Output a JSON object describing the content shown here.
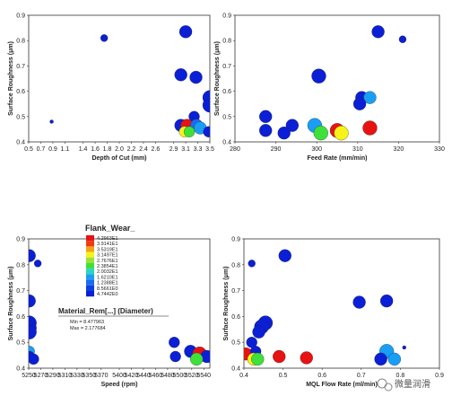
{
  "charts": [
    {
      "type": "scatter",
      "xlabel": "Depth of Cut (mm)",
      "ylabel": "Surface Roughness (μm)",
      "xlim": [
        0.5,
        3.5
      ],
      "ylim": [
        0.4,
        0.9
      ],
      "xticks": [
        "0.5",
        "0.7",
        "0.9",
        "1.1",
        "1.4",
        "1.6",
        "1.8",
        "2.0",
        "2.2",
        "2.4",
        "2.6",
        "2.9",
        "3.1",
        "3.3",
        "3.5"
      ],
      "yticks": [
        "0.4",
        "0.5",
        "0.6",
        "0.7",
        "0.8",
        "0.9"
      ],
      "points": [
        {
          "x": 0.88,
          "y": 0.48,
          "r": 2,
          "color": "#0b1fd6"
        },
        {
          "x": 1.75,
          "y": 0.81,
          "r": 4,
          "color": "#0b1fd6"
        },
        {
          "x": 3.1,
          "y": 0.835,
          "r": 7,
          "color": "#0b1fd6"
        },
        {
          "x": 3.02,
          "y": 0.665,
          "r": 7,
          "color": "#0b1fd6"
        },
        {
          "x": 3.27,
          "y": 0.655,
          "r": 7,
          "color": "#0b1fd6"
        },
        {
          "x": 3.5,
          "y": 0.575,
          "r": 8,
          "color": "#0b1fd6"
        },
        {
          "x": 3.5,
          "y": 0.545,
          "r": 8,
          "color": "#0b1fd6"
        },
        {
          "x": 3.24,
          "y": 0.5,
          "r": 6,
          "color": "#0b1fd6"
        },
        {
          "x": 3.02,
          "y": 0.465,
          "r": 7,
          "color": "#0b1fd6"
        },
        {
          "x": 3.12,
          "y": 0.465,
          "r": 7,
          "color": "#e81212"
        },
        {
          "x": 3.28,
          "y": 0.465,
          "r": 7,
          "color": "#1a6cf0"
        },
        {
          "x": 3.34,
          "y": 0.455,
          "r": 7,
          "color": "#1a9ef5"
        },
        {
          "x": 3.08,
          "y": 0.44,
          "r": 6,
          "color": "#f7f21a"
        },
        {
          "x": 3.16,
          "y": 0.44,
          "r": 6,
          "color": "#3fe03a"
        },
        {
          "x": 3.48,
          "y": 0.44,
          "r": 6,
          "color": "#0b1fd6"
        }
      ]
    },
    {
      "type": "scatter",
      "xlabel": "Feed Rate (mm/min)",
      "ylabel": "Surface Roughness (μm)",
      "xlim": [
        280,
        330
      ],
      "ylim": [
        0.4,
        0.9
      ],
      "xticks": [
        "280",
        "290",
        "300",
        "310",
        "320",
        "330"
      ],
      "yticks": [
        "0.4",
        "0.5",
        "0.6",
        "0.7",
        "0.8",
        "0.9"
      ],
      "points": [
        {
          "x": 315,
          "y": 0.835,
          "r": 7,
          "color": "#0b1fd6"
        },
        {
          "x": 321,
          "y": 0.805,
          "r": 4,
          "color": "#0b1fd6"
        },
        {
          "x": 300.5,
          "y": 0.66,
          "r": 8,
          "color": "#0b1fd6"
        },
        {
          "x": 311,
          "y": 0.575,
          "r": 7,
          "color": "#0b1fd6"
        },
        {
          "x": 313,
          "y": 0.575,
          "r": 7,
          "color": "#1a9ef5"
        },
        {
          "x": 310.5,
          "y": 0.55,
          "r": 7,
          "color": "#0b1fd6"
        },
        {
          "x": 287.5,
          "y": 0.5,
          "r": 7,
          "color": "#0b1fd6"
        },
        {
          "x": 294,
          "y": 0.465,
          "r": 7,
          "color": "#0b1fd6"
        },
        {
          "x": 299.5,
          "y": 0.465,
          "r": 8,
          "color": "#1a9ef5"
        },
        {
          "x": 305,
          "y": 0.445,
          "r": 8,
          "color": "#e81212"
        },
        {
          "x": 313,
          "y": 0.455,
          "r": 8,
          "color": "#e81212"
        },
        {
          "x": 287.5,
          "y": 0.445,
          "r": 7,
          "color": "#0b1fd6"
        },
        {
          "x": 292,
          "y": 0.435,
          "r": 7,
          "color": "#0b1fd6"
        },
        {
          "x": 301,
          "y": 0.435,
          "r": 8,
          "color": "#3fe03a"
        },
        {
          "x": 306,
          "y": 0.435,
          "r": 8,
          "color": "#f7f21a"
        }
      ]
    },
    {
      "type": "scatter",
      "xlabel": "Speed (rpm)",
      "ylabel": "Surface Roughness (μm)",
      "xlim": [
        5250,
        5550
      ],
      "ylim": [
        0.4,
        0.9
      ],
      "xticks": [
        "5250",
        "5270",
        "5290",
        "5310",
        "5330",
        "5350",
        "5370",
        "5400",
        "5420",
        "5440",
        "5460",
        "5480",
        "5500",
        "5520",
        "5540"
      ],
      "xtick_values": [
        5250,
        5270,
        5290,
        5310,
        5330,
        5350,
        5370,
        5400,
        5420,
        5440,
        5460,
        5480,
        5500,
        5520,
        5540
      ],
      "yticks": [
        "0.4",
        "0.5",
        "0.6",
        "0.7",
        "0.8",
        "0.9"
      ],
      "points": [
        {
          "x": 5251,
          "y": 0.835,
          "r": 7,
          "color": "#0b1fd6"
        },
        {
          "x": 5265,
          "y": 0.805,
          "r": 4,
          "color": "#0b1fd6"
        },
        {
          "x": 5251,
          "y": 0.66,
          "r": 7,
          "color": "#0b1fd6"
        },
        {
          "x": 5251,
          "y": 0.575,
          "r": 8,
          "color": "#0b1fd6"
        },
        {
          "x": 5251,
          "y": 0.555,
          "r": 8,
          "color": "#0b1fd6"
        },
        {
          "x": 5251,
          "y": 0.54,
          "r": 8,
          "color": "#0b1fd6"
        },
        {
          "x": 5251,
          "y": 0.465,
          "r": 6,
          "color": "#1a9ef5"
        },
        {
          "x": 5251,
          "y": 0.445,
          "r": 6,
          "color": "#0b1fd6"
        },
        {
          "x": 5258,
          "y": 0.435,
          "r": 6,
          "color": "#0b1fd6"
        },
        {
          "x": 5491,
          "y": 0.5,
          "r": 6,
          "color": "#0b1fd6"
        },
        {
          "x": 5493,
          "y": 0.445,
          "r": 6,
          "color": "#0b1fd6"
        },
        {
          "x": 5518,
          "y": 0.465,
          "r": 7,
          "color": "#0b1fd6"
        },
        {
          "x": 5533,
          "y": 0.455,
          "r": 8,
          "color": "#e81212"
        },
        {
          "x": 5545,
          "y": 0.445,
          "r": 7,
          "color": "#0b1fd6"
        },
        {
          "x": 5528,
          "y": 0.435,
          "r": 7,
          "color": "#3fe03a"
        }
      ]
    },
    {
      "type": "scatter",
      "xlabel": "MQL Flow Rate (ml/min)",
      "ylabel": "Surface Roughness (μm)",
      "xlim": [
        0.4,
        0.9
      ],
      "ylim": [
        0.4,
        0.9
      ],
      "xticks": [
        "0.4",
        "0.5",
        "0.6",
        "0.7",
        "0.8",
        "0.9"
      ],
      "yticks": [
        "0.4",
        "0.5",
        "0.6",
        "0.7",
        "0.8",
        "0.9"
      ],
      "points": [
        {
          "x": 0.42,
          "y": 0.805,
          "r": 4,
          "color": "#0b1fd6"
        },
        {
          "x": 0.505,
          "y": 0.835,
          "r": 7,
          "color": "#0b1fd6"
        },
        {
          "x": 0.455,
          "y": 0.575,
          "r": 8,
          "color": "#0b1fd6"
        },
        {
          "x": 0.445,
          "y": 0.56,
          "r": 8,
          "color": "#0b1fd6"
        },
        {
          "x": 0.438,
          "y": 0.54,
          "r": 7,
          "color": "#0b1fd6"
        },
        {
          "x": 0.695,
          "y": 0.655,
          "r": 7,
          "color": "#0b1fd6"
        },
        {
          "x": 0.765,
          "y": 0.66,
          "r": 7,
          "color": "#0b1fd6"
        },
        {
          "x": 0.42,
          "y": 0.5,
          "r": 6,
          "color": "#0b1fd6"
        },
        {
          "x": 0.765,
          "y": 0.465,
          "r": 8,
          "color": "#1a9ef5"
        },
        {
          "x": 0.81,
          "y": 0.48,
          "r": 2,
          "color": "#0b1fd6"
        },
        {
          "x": 0.405,
          "y": 0.455,
          "r": 7,
          "color": "#e81212"
        },
        {
          "x": 0.43,
          "y": 0.465,
          "r": 6,
          "color": "#0b1fd6"
        },
        {
          "x": 0.49,
          "y": 0.445,
          "r": 7,
          "color": "#e81212"
        },
        {
          "x": 0.56,
          "y": 0.44,
          "r": 7,
          "color": "#e81212"
        },
        {
          "x": 0.425,
          "y": 0.435,
          "r": 7,
          "color": "#f7f21a"
        },
        {
          "x": 0.435,
          "y": 0.435,
          "r": 7,
          "color": "#3fe03a"
        },
        {
          "x": 0.75,
          "y": 0.435,
          "r": 7,
          "color": "#0b1fd6"
        },
        {
          "x": 0.785,
          "y": 0.435,
          "r": 7,
          "color": "#1a9ef5"
        }
      ]
    }
  ],
  "legend": {
    "title": "Flank_Wear_",
    "entries": [
      {
        "label": "4.2963E1",
        "color": "#e81212"
      },
      {
        "label": "3.9141E1",
        "color": "#f03a12"
      },
      {
        "label": "3.5319E1",
        "color": "#f5a21a"
      },
      {
        "label": "3.1497E1",
        "color": "#f7f21a"
      },
      {
        "label": "2.7676E1",
        "color": "#9be23a"
      },
      {
        "label": "2.3854E1",
        "color": "#3fe03a"
      },
      {
        "label": "2.0032E1",
        "color": "#2ad6c2"
      },
      {
        "label": "1.6210E1",
        "color": "#1a9ef5"
      },
      {
        "label": "1.2388E1",
        "color": "#1a6cf0"
      },
      {
        "label": "8.5661E0",
        "color": "#0b3fe0"
      },
      {
        "label": "4.7442E0",
        "color": "#0b1fd6"
      }
    ]
  },
  "size_legend": {
    "title": "Material_Rem[...] (Diameter)",
    "min": "Min = 8.477963",
    "max": "Max = 2.177684"
  },
  "watermark": "微量润滑"
}
